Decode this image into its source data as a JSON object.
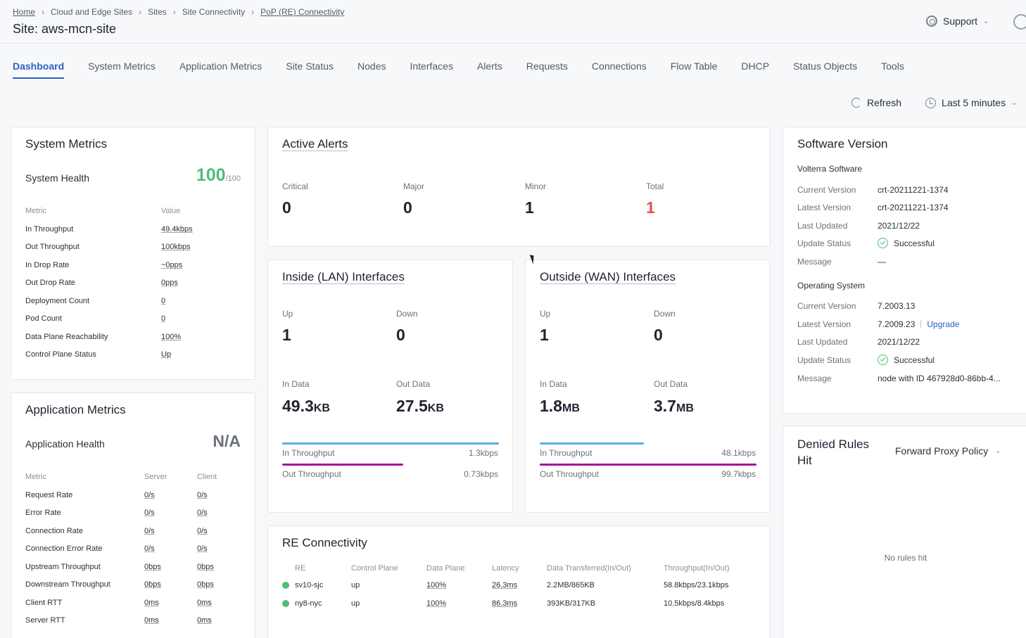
{
  "breadcrumb": {
    "items": [
      "Home",
      "Cloud and Edge Sites",
      "Sites",
      "Site Connectivity",
      "PoP (RE) Connectivity"
    ]
  },
  "page_title": "Site: aws-mcn-site",
  "header": {
    "support_label": "Support",
    "support_icon": "lifebuoy-icon",
    "user_icon": "user-icon"
  },
  "tabs": [
    "Dashboard",
    "System Metrics",
    "Application Metrics",
    "Site Status",
    "Nodes",
    "Interfaces",
    "Alerts",
    "Requests",
    "Connections",
    "Flow Table",
    "DHCP",
    "Status Objects",
    "Tools"
  ],
  "active_tab": "Dashboard",
  "toolbar": {
    "refresh_label": "Refresh",
    "time_range": "Last 5 minutes"
  },
  "colors": {
    "accent": "#2b63c5",
    "health_green": "#4cbf79",
    "alert_red": "#e0544e",
    "in_bar": "#5aaee6",
    "out_bar": "#a0179a"
  },
  "system_metrics": {
    "title": "System Metrics",
    "health_label": "System Health",
    "health_value": "100",
    "health_max": "/100",
    "col_metric": "Metric",
    "col_value": "Value",
    "rows": [
      {
        "label": "In Throughput",
        "value": "49.4kbps"
      },
      {
        "label": "Out Throughput",
        "value": "100kbps"
      },
      {
        "label": "In Drop Rate",
        "value": "~0pps"
      },
      {
        "label": "Out Drop Rate",
        "value": "0pps"
      },
      {
        "label": "Deployment Count",
        "value": "0"
      },
      {
        "label": "Pod Count",
        "value": "0"
      },
      {
        "label": "Data Plane Reachability",
        "value": "100%"
      },
      {
        "label": "Control Plane Status",
        "value": "Up"
      }
    ]
  },
  "app_metrics": {
    "title": "Application Metrics",
    "health_label": "Application Health",
    "health_value": "N/A",
    "col_metric": "Metric",
    "col_server": "Server",
    "col_client": "Client",
    "rows": [
      {
        "label": "Request Rate",
        "server": "0/s",
        "client": "0/s"
      },
      {
        "label": "Error Rate",
        "server": "0/s",
        "client": "0/s"
      },
      {
        "label": "Connection Rate",
        "server": "0/s",
        "client": "0/s"
      },
      {
        "label": "Connection Error Rate",
        "server": "0/s",
        "client": "0/s"
      },
      {
        "label": "Upstream Throughput",
        "server": "0bps",
        "client": "0bps"
      },
      {
        "label": "Downstream Throughput",
        "server": "0bps",
        "client": "0bps"
      },
      {
        "label": "Client RTT",
        "server": "0ms",
        "client": "0ms"
      },
      {
        "label": "Server RTT",
        "server": "0ms",
        "client": "0ms"
      }
    ]
  },
  "active_alerts": {
    "title": "Active Alerts",
    "items": [
      {
        "label": "Critical",
        "value": "0"
      },
      {
        "label": "Major",
        "value": "0"
      },
      {
        "label": "Minor",
        "value": "1"
      },
      {
        "label": "Total",
        "value": "1"
      }
    ]
  },
  "lan": {
    "title": "Inside (LAN) Interfaces",
    "up_label": "Up",
    "up": "1",
    "down_label": "Down",
    "down": "0",
    "in_data_label": "In Data",
    "in_data": "49.3",
    "in_data_unit": "KB",
    "out_data_label": "Out Data",
    "out_data": "27.5",
    "out_data_unit": "KB",
    "in_tp_label": "In Throughput",
    "in_tp": "1.3kbps",
    "in_fill": 1.0,
    "out_tp_label": "Out Throughput",
    "out_tp": "0.73kbps",
    "out_fill": 0.56
  },
  "wan": {
    "title": "Outside (WAN) Interfaces",
    "up_label": "Up",
    "up": "1",
    "down_label": "Down",
    "down": "0",
    "in_data_label": "In Data",
    "in_data": "1.8",
    "in_data_unit": "MB",
    "out_data_label": "Out Data",
    "out_data": "3.7",
    "out_data_unit": "MB",
    "in_tp_label": "In Throughput",
    "in_tp": "48.1kbps",
    "in_fill": 0.48,
    "out_tp_label": "Out Throughput",
    "out_tp": "99.7kbps",
    "out_fill": 1.0
  },
  "re_connectivity": {
    "title": "RE Connectivity",
    "headers": [
      "RE",
      "Control Plane",
      "Data Plane",
      "Latency",
      "Data Transferred(In/Out)",
      "Throughput(In/Out)"
    ],
    "rows": [
      {
        "re": "sv10-sjc",
        "control": "up",
        "data": "100%",
        "latency": "26.3ms",
        "transferred": "2.2MB/865KB",
        "throughput": "58.8kbps/23.1kbps"
      },
      {
        "re": "ny8-nyc",
        "control": "up",
        "data": "100%",
        "latency": "86.3ms",
        "transferred": "393KB/317KB",
        "throughput": "10.5kbps/8.4kbps"
      }
    ]
  },
  "software": {
    "title": "Software Version",
    "volterra_label": "Volterra Software",
    "os_label": "Operating System",
    "volterra": [
      {
        "label": "Current Version",
        "value": "crt-20211221-1374"
      },
      {
        "label": "Latest Version",
        "value": "crt-20211221-1374"
      },
      {
        "label": "Last Updated",
        "value": "2021/12/22"
      },
      {
        "label": "Update Status",
        "value": "Successful"
      },
      {
        "label": "Message",
        "value": "—"
      }
    ],
    "os": [
      {
        "label": "Current Version",
        "value": "7.2003.13"
      },
      {
        "label": "Latest Version",
        "value": "7.2009.23"
      },
      {
        "label": "Last Updated",
        "value": "2021/12/22"
      },
      {
        "label": "Update Status",
        "value": "Successful"
      },
      {
        "label": "Message",
        "value": "node with ID 467928d0-86bb-4..."
      }
    ],
    "upgrade_label": "Upgrade"
  },
  "denied_rules": {
    "title_line1": "Denied Rules",
    "title_line2": "Hit",
    "policy": "Forward Proxy Policy",
    "empty": "No rules hit"
  }
}
